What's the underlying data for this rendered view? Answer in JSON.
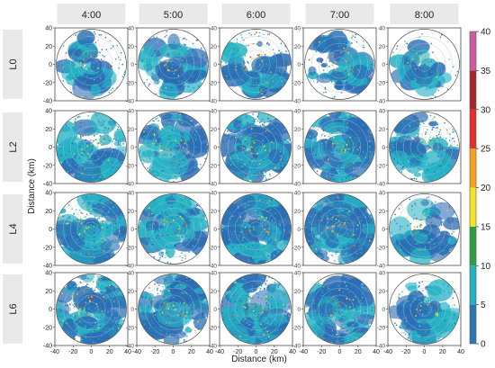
{
  "chart_data": {
    "type": "heatmap",
    "subtype": "polar radar PPI grid",
    "columns": [
      "4:00",
      "5:00",
      "6:00",
      "7:00",
      "8:00"
    ],
    "rows": [
      "L0",
      "L2",
      "L4",
      "L6"
    ],
    "xlabel": "Distance (km)",
    "ylabel": "Distance (km)",
    "xlim": [
      -40,
      40
    ],
    "ylim": [
      -40,
      40
    ],
    "x_ticks": [
      -40,
      -20,
      0,
      20,
      40
    ],
    "y_ticks": [
      40,
      20,
      0,
      -20,
      -40
    ],
    "range_rings_km": [
      8,
      16,
      24,
      32,
      40
    ],
    "grid": true,
    "colorbar": {
      "range": [
        0,
        40
      ],
      "ticks": [
        0,
        5,
        10,
        15,
        20,
        25,
        30,
        35,
        40
      ],
      "colors": [
        "#1f5fa8",
        "#2f8fd0",
        "#20b8c8",
        "#2e9e44",
        "#f3e42a",
        "#f4a21e",
        "#e2302b",
        "#a6272a",
        "#d05aa0"
      ]
    },
    "coverage": [
      [
        0.45,
        0.55,
        0.6,
        0.55,
        0.35
      ],
      [
        0.8,
        0.7,
        0.9,
        0.85,
        0.65
      ],
      [
        0.85,
        0.8,
        0.95,
        0.9,
        0.6
      ],
      [
        0.95,
        0.85,
        1.0,
        0.8,
        0.6
      ]
    ]
  }
}
